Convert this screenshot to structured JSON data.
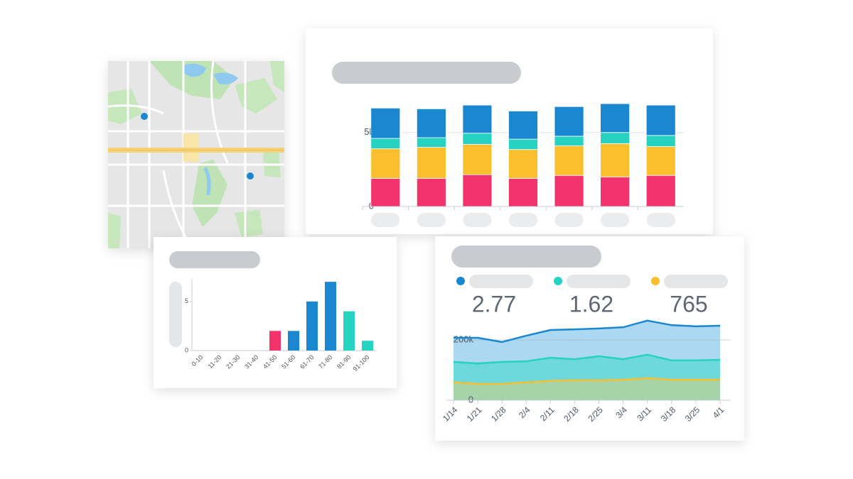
{
  "chart_data": [
    {
      "type": "stacked-bar",
      "categories": [
        null,
        null,
        null,
        null,
        null,
        null,
        null
      ],
      "series": [
        {
          "color": "#f2336c",
          "values": [
            1900,
            1900,
            2150,
            1900,
            2100,
            2000,
            2100
          ]
        },
        {
          "color": "#fbbf2e",
          "values": [
            2000,
            2100,
            2050,
            1950,
            2000,
            2250,
            1950
          ]
        },
        {
          "color": "#25d3c0",
          "values": [
            700,
            650,
            750,
            700,
            650,
            750,
            750
          ]
        },
        {
          "color": "#1b87d0",
          "values": [
            2050,
            1950,
            1900,
            1900,
            2000,
            1950,
            2050
          ]
        }
      ],
      "ylim": [
        0,
        7000
      ],
      "yticks": [
        0,
        {
          "value": 5000,
          "label": "5k"
        }
      ],
      "grid": true
    },
    {
      "type": "bar",
      "categories": [
        "0-10",
        "11-20",
        "21-30",
        "31-40",
        "41-50",
        "51-60",
        "61-70",
        "71-80",
        "81-90",
        "91-100"
      ],
      "values": [
        0,
        0,
        0,
        0,
        2,
        2,
        5,
        7,
        4,
        1
      ],
      "colors": [
        "#1b87d0",
        "#1b87d0",
        "#1b87d0",
        "#1b87d0",
        "#f2336c",
        "#1b87d0",
        "#1b87d0",
        "#1b87d0",
        "#25d3c0",
        "#25d3c0"
      ],
      "ylim": [
        0,
        7.3
      ],
      "yticks": [
        0,
        5
      ]
    },
    {
      "type": "area",
      "categories": [
        "1/14",
        "1/21",
        "1/28",
        "2/4",
        "2/11",
        "2/18",
        "2/25",
        "3/4",
        "3/11",
        "3/18",
        "3/25",
        "4/1"
      ],
      "series": [
        {
          "color": "#1b87d0",
          "fill": "#acd8f1",
          "values": [
            207000,
            207000,
            193000,
            214000,
            233000,
            235000,
            238000,
            242000,
            264000,
            249000,
            245000,
            247000
          ]
        },
        {
          "color": "#25d3c0",
          "fill": "#6fd8da",
          "values": [
            127000,
            122000,
            127000,
            129000,
            141000,
            136000,
            146000,
            136000,
            151000,
            132000,
            132000,
            134000
          ]
        },
        {
          "color": "#fbbf2e",
          "fill": "#a6d4a9",
          "values": [
            59000,
            54000,
            54000,
            59000,
            64000,
            66000,
            66000,
            68000,
            73000,
            68000,
            68000,
            68000
          ]
        }
      ],
      "stat_values": [
        2.77,
        1.62,
        765
      ],
      "ylim": [
        0,
        280000
      ],
      "yticks": [
        0,
        {
          "value": 200000,
          "label": "200k"
        }
      ],
      "grid": true
    }
  ]
}
